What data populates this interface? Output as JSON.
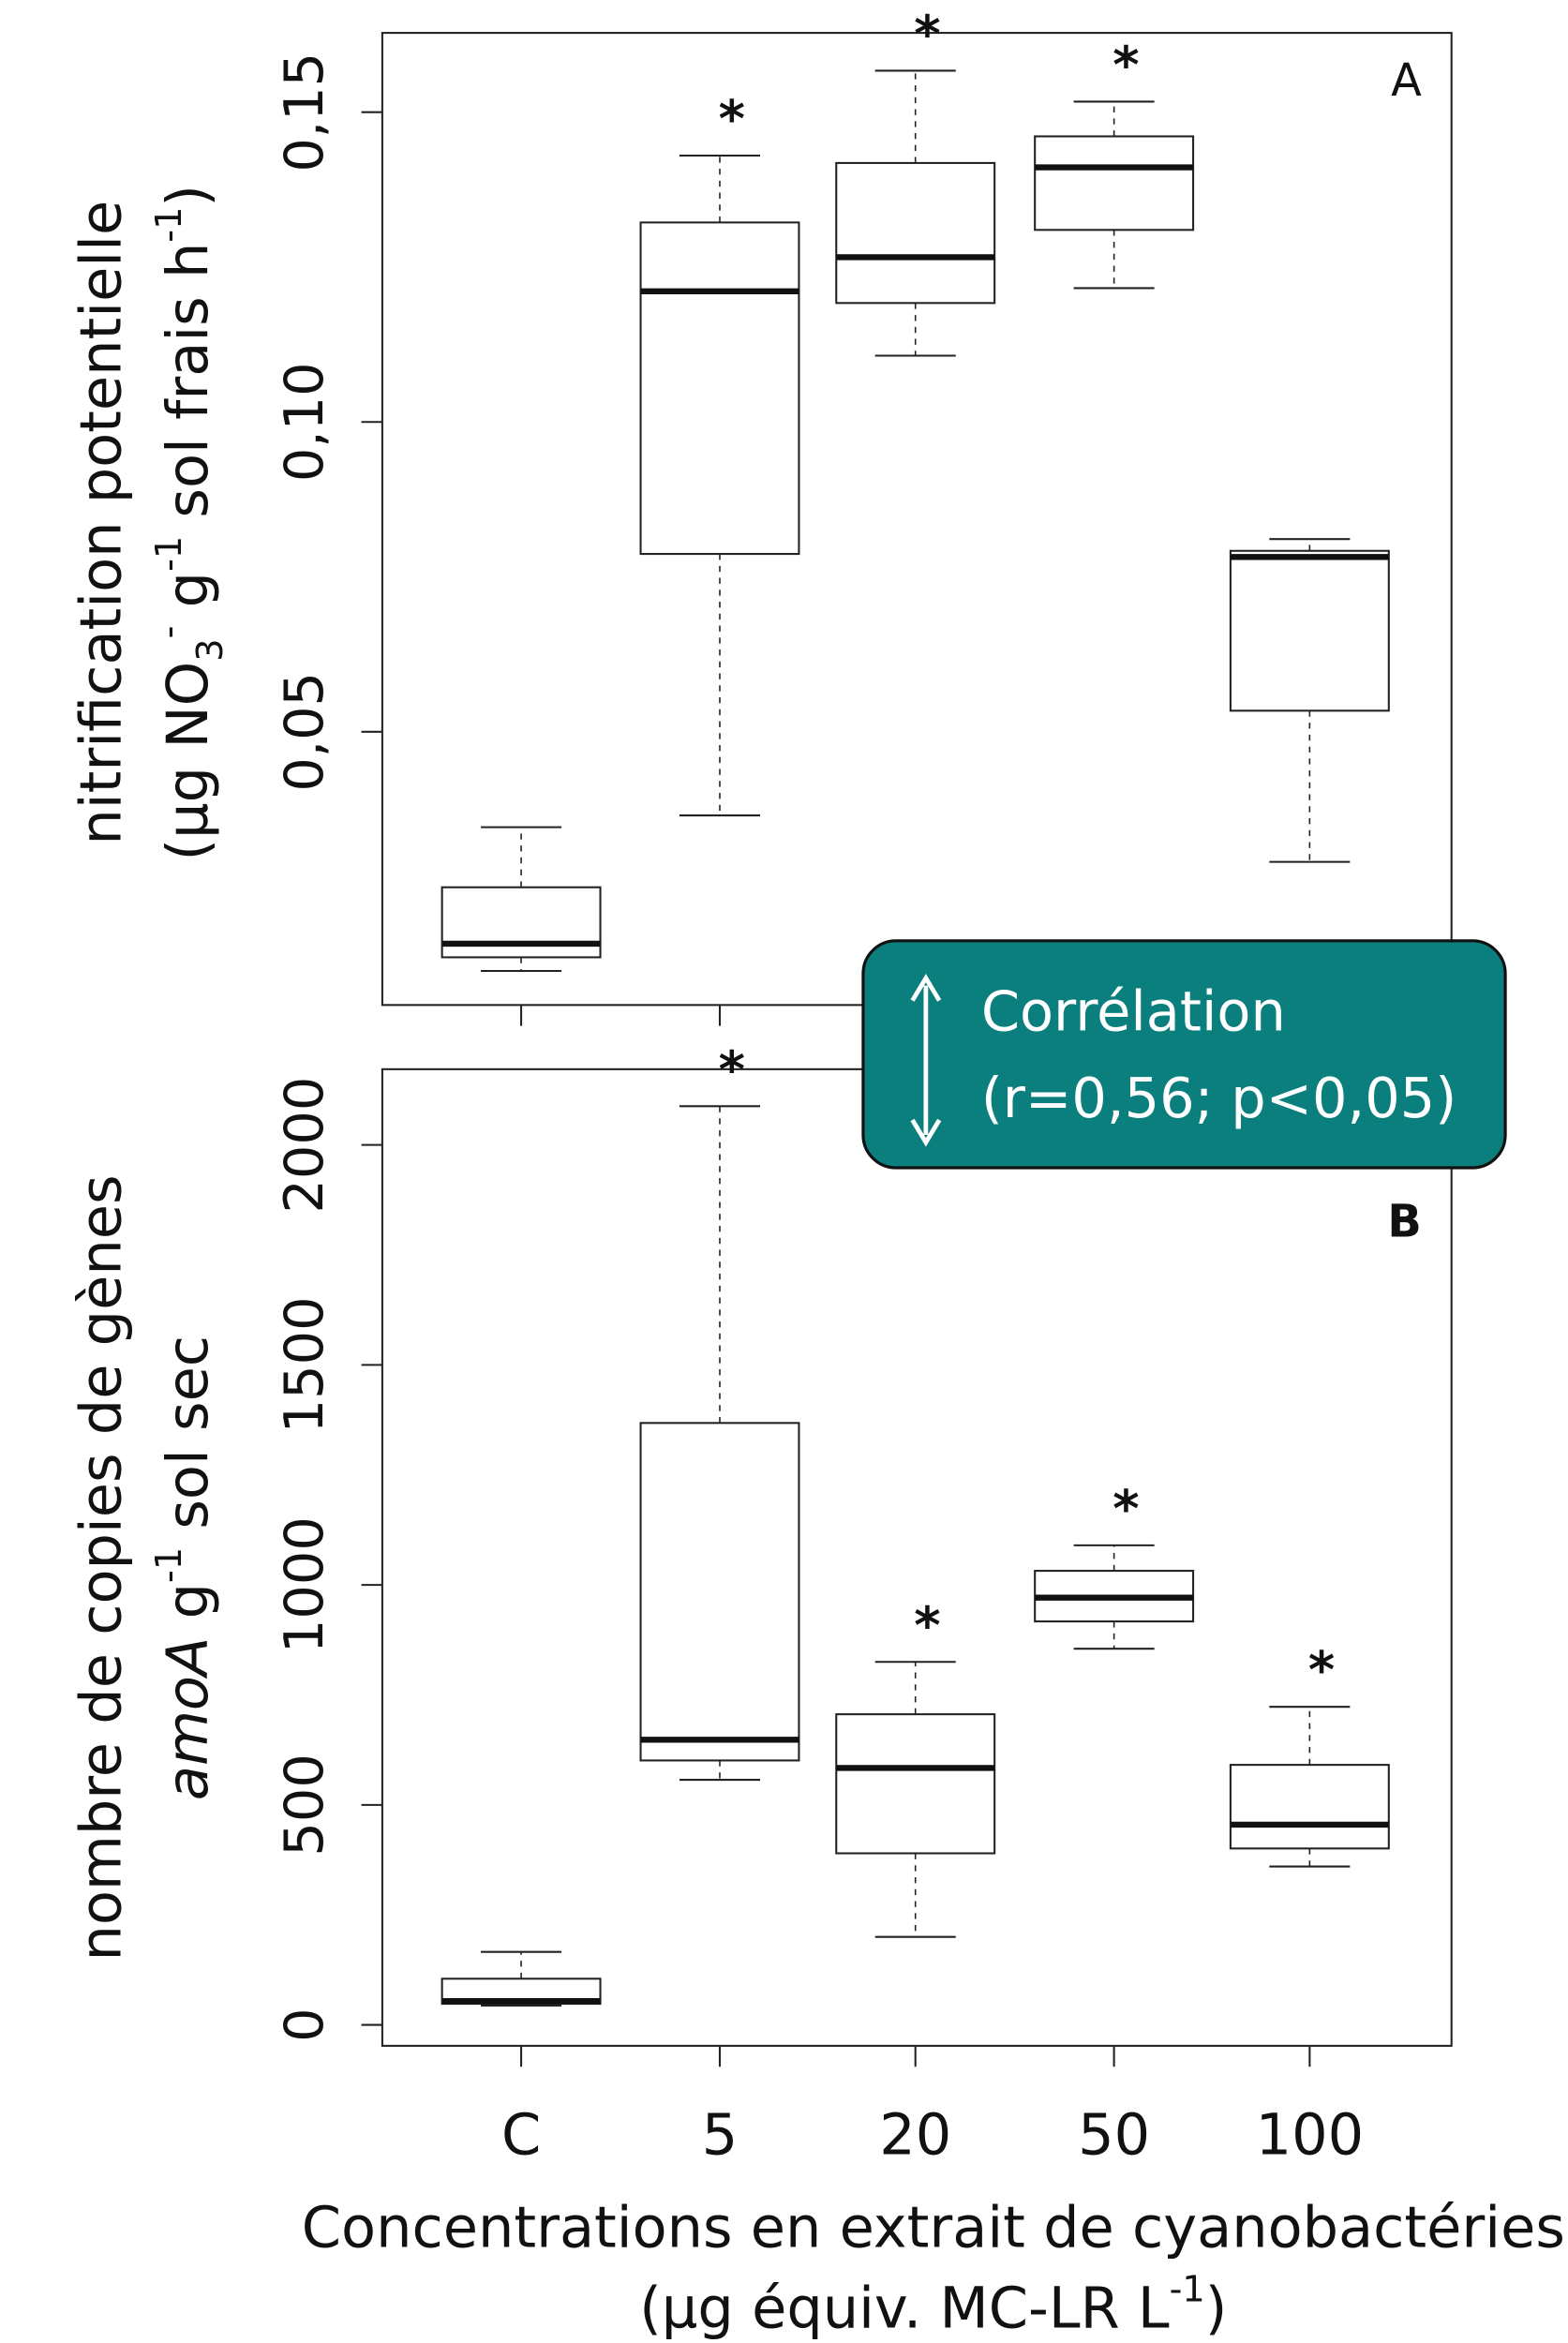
{
  "chart_data": [
    {
      "type": "box",
      "label": "A",
      "y_label": [
        "nitrification potentielle",
        [
          "(µg NO",
          "3",
          "-",
          " g",
          "-1",
          " sol frais h",
          "-1",
          ")"
        ]
      ],
      "categories": [
        null,
        null,
        null,
        null,
        null
      ],
      "boxes": [
        {
          "min": 0.0114,
          "q1": 0.0136,
          "median": 0.0158,
          "q3": 0.0249,
          "max": 0.0346
        },
        {
          "min": 0.0365,
          "q1": 0.0787,
          "median": 0.1211,
          "q3": 0.1322,
          "max": 0.143
        },
        {
          "min": 0.1107,
          "q1": 0.1192,
          "median": 0.1266,
          "q3": 0.1418,
          "max": 0.1567
        },
        {
          "min": 0.1216,
          "q1": 0.131,
          "median": 0.1411,
          "q3": 0.1461,
          "max": 0.1517
        },
        {
          "min": 0.029,
          "q1": 0.0534,
          "median": 0.0782,
          "q3": 0.0792,
          "max": 0.0811
        }
      ],
      "annotations": [
        {
          "category": 1,
          "text": "*"
        },
        {
          "category": 2,
          "text": "*"
        },
        {
          "category": 3,
          "text": "*"
        }
      ],
      "ylim": [
        0.0059,
        0.1628
      ],
      "yticks": [
        {
          "value": 0.05,
          "label": "0,05"
        },
        {
          "value": 0.1,
          "label": "0,10"
        },
        {
          "value": 0.15,
          "label": "0,15"
        }
      ]
    },
    {
      "type": "box",
      "label": "B",
      "y_label": [
        "nombre de copies de gènes",
        [
          "amoA",
          " g",
          "-1",
          " sol sec"
        ]
      ],
      "categories": [
        "C",
        "5",
        "20",
        "50",
        "100"
      ],
      "boxes": [
        {
          "min": 44,
          "q1": 48,
          "median": 54,
          "q3": 105,
          "max": 166
        },
        {
          "min": 557,
          "q1": 601,
          "median": 648,
          "q3": 1368,
          "max": 2088
        },
        {
          "min": 200,
          "q1": 390,
          "median": 584,
          "q3": 706,
          "max": 825
        },
        {
          "min": 855,
          "q1": 917,
          "median": 971,
          "q3": 1032,
          "max": 1090
        },
        {
          "min": 360,
          "q1": 401,
          "median": 455,
          "q3": 591,
          "max": 723
        }
      ],
      "annotations": [
        {
          "category": 1,
          "text": "*"
        },
        {
          "category": 2,
          "text": "*"
        },
        {
          "category": 3,
          "text": "*"
        },
        {
          "category": 4,
          "text": "*"
        }
      ],
      "ylim": [
        -47.5,
        2172
      ],
      "yticks": [
        0,
        500,
        1000,
        1500,
        2000
      ]
    }
  ],
  "x_label": [
    "Concentrations en extrait de cyanobactéries",
    [
      "(µg équiv. MC-LR L",
      "-1",
      ")"
    ]
  ],
  "callout": [
    "Corrélation",
    "(r=0,56; p<0,05)"
  ]
}
